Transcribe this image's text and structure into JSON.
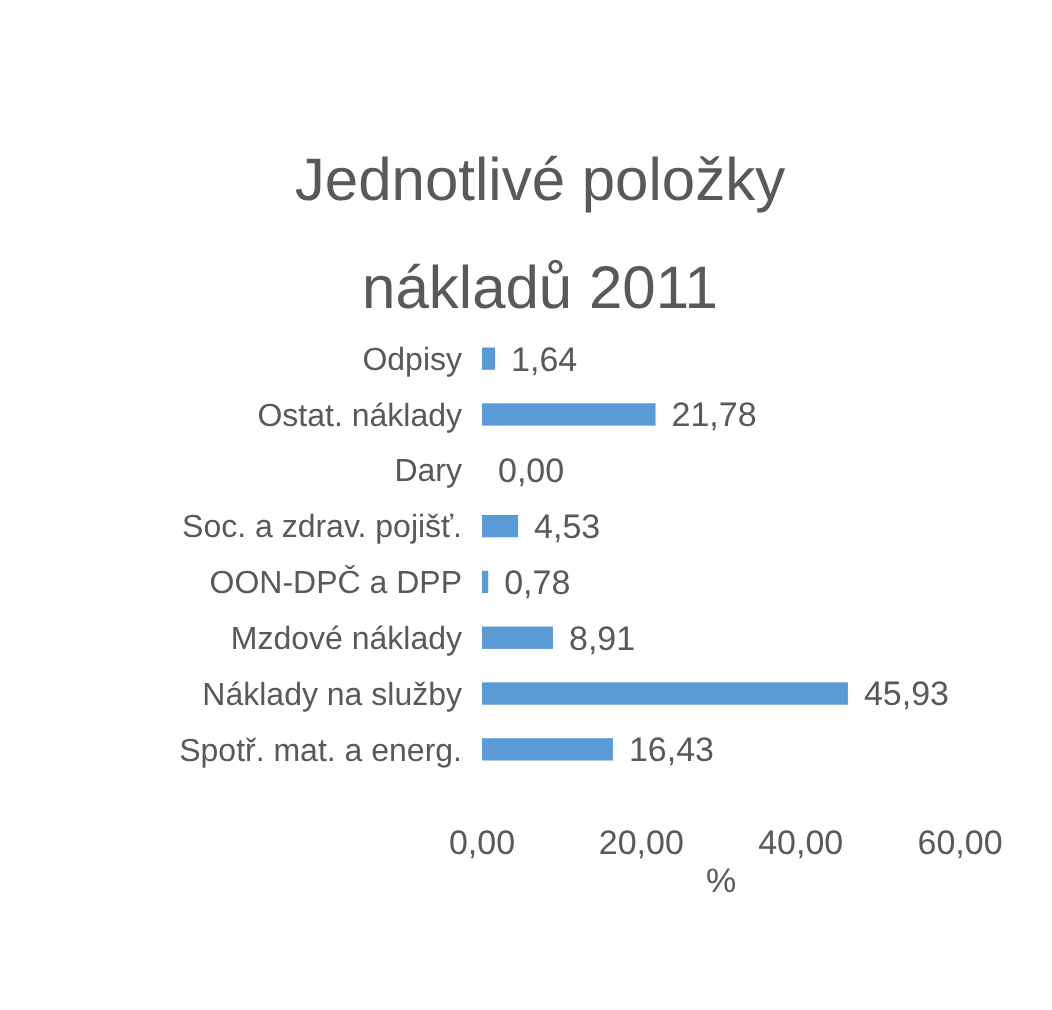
{
  "chart_data": {
    "type": "bar",
    "orientation": "horizontal",
    "title": "Jednotlivé položky nákladů 2011",
    "xlabel": "%",
    "categories": [
      "Odpisy",
      "Ostat. náklady",
      "Dary",
      "Soc. a zdrav. pojišť.",
      "OON-DPČ a DPP",
      "Mzdové náklady",
      "Náklady na služby",
      "Spotř. mat. a energ."
    ],
    "values": [
      1.64,
      21.78,
      0,
      4.53,
      0.78,
      8.91,
      45.93,
      16.43
    ],
    "value_labels": [
      "1,64",
      "21,78",
      "0,00",
      "4,53",
      "0,78",
      "8,91",
      "45,93",
      "16,43"
    ],
    "color": "#5b9bd5",
    "xlim": [
      0,
      60
    ],
    "xticks": [
      {
        "value": 0,
        "label": "0,00"
      },
      {
        "value": 20,
        "label": "20,00"
      },
      {
        "value": 40,
        "label": "40,00"
      },
      {
        "value": 60,
        "label": "60,00"
      }
    ],
    "grid": false
  }
}
